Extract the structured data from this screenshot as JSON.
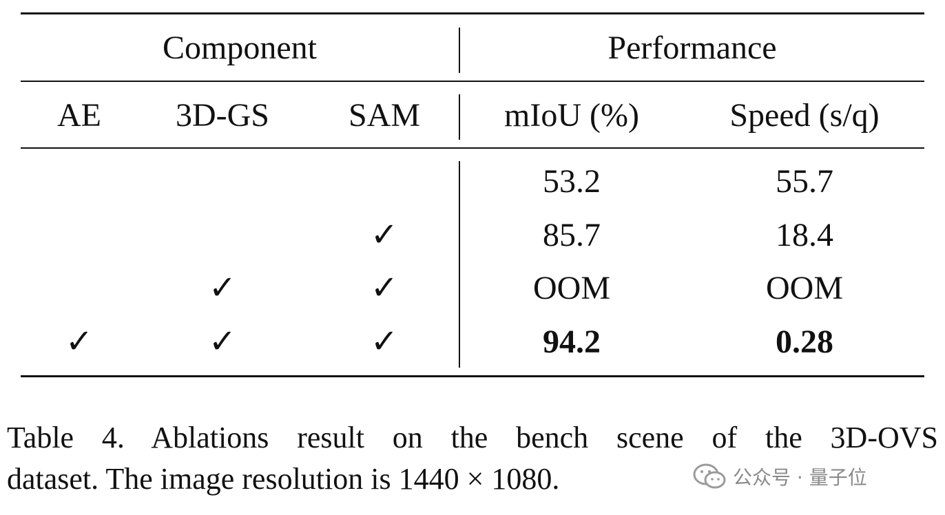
{
  "table": {
    "groups": [
      "Component",
      "Performance"
    ],
    "columns": [
      "AE",
      "3D-GS",
      "SAM",
      "mIoU (%)",
      "Speed (s/q)"
    ],
    "rows": [
      [
        null,
        null,
        null,
        53.2,
        55.7
      ],
      [
        null,
        null,
        "✓",
        85.7,
        18.4
      ],
      [
        null,
        "✓",
        "✓",
        "OOM",
        "OOM"
      ],
      [
        "✓",
        "✓",
        "✓",
        94.2,
        0.28
      ]
    ]
  },
  "caption": {
    "line1": "Table 4.  Ablations result on the bench scene of the 3D-OVS",
    "line2": "dataset. The image resolution is 1440 × 1080."
  },
  "watermark": "公众号 · 量子位"
}
